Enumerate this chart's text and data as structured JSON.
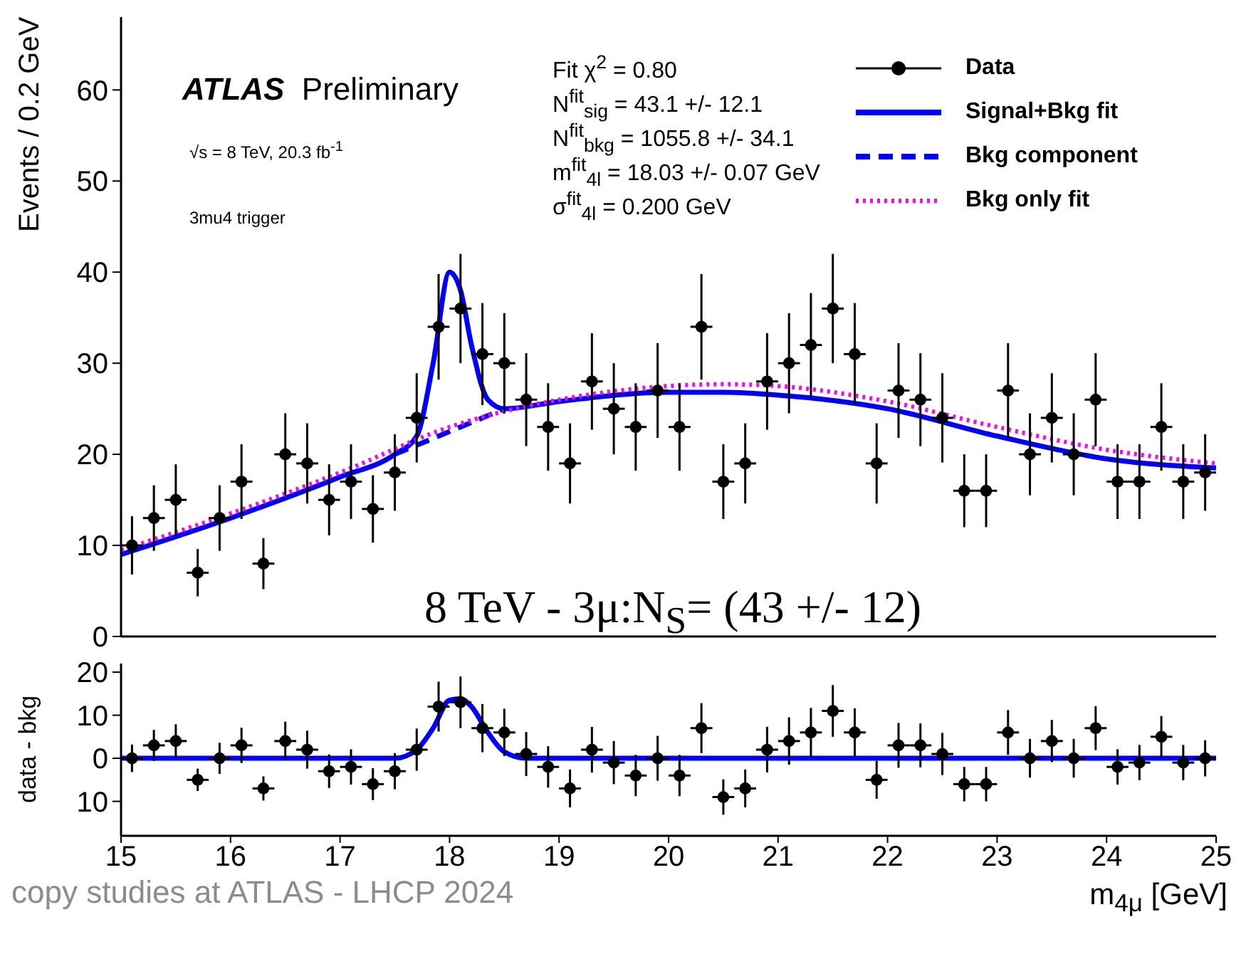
{
  "chart_data": [
    {
      "type": "scatter",
      "ylabel": "Events / 0.2 GeV",
      "xlim": [
        15,
        25
      ],
      "xticks": [
        15,
        16,
        17,
        18,
        19,
        20,
        21,
        22,
        23,
        24,
        25
      ],
      "ylim": [
        0,
        68
      ],
      "yticks": [
        0,
        10,
        20,
        30,
        40,
        50,
        60
      ],
      "tick_labels": "y",
      "legend": "top right",
      "annotations": [
        "ATLAS Preliminary",
        "√s = 8 TeV, 20.3 fb$^{-1}$",
        "3mu4 trigger",
        "Fit χ$^{2}$ = 0.80",
        "N$^{fit}$$_{sig}$ = 43.1 +/- 12.1",
        "N$^{fit}$$_{bkg}$ = 1055.8 +/- 34.1",
        "m$^{fit}$$_{4l}$ = 18.03 +/- 0.07 GeV",
        "σ$^{fit}$$_{4l}$ = 0.200 GeV",
        "8 TeV - 3μ:N$_{S}$= (43 +/- 12)"
      ],
      "series": [
        {
          "name": "Data",
          "marker": "circle",
          "color": "#000000",
          "x": [
            15.1,
            15.3,
            15.5,
            15.7,
            15.9,
            16.1,
            16.3,
            16.5,
            16.7,
            16.9,
            17.1,
            17.3,
            17.5,
            17.7,
            17.9,
            18.1,
            18.3,
            18.5,
            18.7,
            18.9,
            19.1,
            19.3,
            19.5,
            19.7,
            19.9,
            20.1,
            20.3,
            20.5,
            20.7,
            20.9,
            21.1,
            21.3,
            21.5,
            21.7,
            21.9,
            22.1,
            22.3,
            22.5,
            22.7,
            22.9,
            23.1,
            23.3,
            23.5,
            23.7,
            23.9,
            24.1,
            24.3,
            24.5,
            24.7,
            24.9
          ],
          "values": [
            10,
            13,
            15,
            7,
            13,
            17,
            8,
            20,
            19,
            15,
            17,
            14,
            18,
            24,
            34,
            36,
            31,
            30,
            26,
            23,
            19,
            28,
            25,
            23,
            27,
            23,
            34,
            17,
            19,
            28,
            30,
            32,
            36,
            31,
            19,
            27,
            26,
            24,
            16,
            16,
            27,
            20,
            24,
            20,
            26,
            17,
            17,
            23,
            17,
            18
          ],
          "errors": [
            3.2,
            3.6,
            3.9,
            2.6,
            3.6,
            4.1,
            2.8,
            4.5,
            4.4,
            3.9,
            4.1,
            3.7,
            4.2,
            4.9,
            5.8,
            6,
            5.6,
            5.5,
            5.1,
            4.8,
            4.4,
            5.3,
            5,
            4.8,
            5.2,
            4.8,
            5.8,
            4.1,
            4.4,
            5.3,
            5.5,
            5.7,
            6,
            5.6,
            4.4,
            5.2,
            5.1,
            4.9,
            4,
            4,
            5.2,
            4.5,
            4.9,
            4.5,
            5.1,
            4.1,
            4.1,
            4.8,
            4.1,
            4.2
          ],
          "xerrors": [
            0.1,
            0.1,
            0.1,
            0.1,
            0.1,
            0.1,
            0.1,
            0.1,
            0.1,
            0.1,
            0.1,
            0.1,
            0.1,
            0.1,
            0.1,
            0.1,
            0.1,
            0.1,
            0.1,
            0.1,
            0.1,
            0.1,
            0.1,
            0.1,
            0.1,
            0.1,
            0.1,
            0.1,
            0.1,
            0.1,
            0.1,
            0.1,
            0.1,
            0.1,
            0.1,
            0.1,
            0.1,
            0.1,
            0.1,
            0.1,
            0.1,
            0.1,
            0.1,
            0.1,
            0.1,
            0.1,
            0.1,
            0.1,
            0.1,
            0.1
          ]
        },
        {
          "name": "Signal+Bkg fit",
          "type": "line",
          "line_style": "solid",
          "color": "#0000ff",
          "x": [
            15,
            16,
            17,
            17.5,
            17.7,
            17.85,
            18,
            18.1,
            18.2,
            18.35,
            18.5,
            19,
            20,
            20.5,
            21,
            22,
            23,
            24,
            25
          ],
          "values": [
            9,
            13,
            17.5,
            20,
            22,
            30,
            40,
            38,
            32,
            26,
            25,
            25.8,
            26.8,
            26.8,
            26.5,
            25,
            22,
            19.5,
            18.5
          ]
        },
        {
          "name": "Bkg component",
          "type": "line",
          "line_style": "dashed",
          "color": "#0000ff",
          "x": [
            17.5,
            18,
            18.5
          ],
          "values": [
            20,
            22.5,
            25
          ]
        },
        {
          "name": "Bkg only fit",
          "type": "line",
          "line_style": "dotted",
          "color": "#ff00ff",
          "x": [
            15,
            16,
            17,
            18,
            19,
            20,
            20.5,
            21,
            22,
            23,
            24,
            25
          ],
          "values": [
            9.5,
            13.5,
            18,
            23,
            26,
            27.5,
            27.7,
            27.5,
            25.8,
            23,
            20.5,
            19
          ]
        }
      ]
    },
    {
      "type": "scatter",
      "ylabel": "data - bkg",
      "xlabel": "m$_{4μ}$ [GeV]",
      "xlim": [
        15,
        25
      ],
      "xticks": [
        15,
        16,
        17,
        18,
        19,
        20,
        21,
        22,
        23,
        24,
        25
      ],
      "ylim": [
        -18,
        22
      ],
      "yticks": [
        {
          "value": -10,
          "label": "10"
        },
        0,
        10,
        20
      ],
      "annotations": [
        "copy studies at ATLAS - LHCP 2024"
      ],
      "series": [
        {
          "marker": "circle",
          "color": "#000000",
          "x": [
            15.1,
            15.3,
            15.5,
            15.7,
            15.9,
            16.1,
            16.3,
            16.5,
            16.7,
            16.9,
            17.1,
            17.3,
            17.5,
            17.7,
            17.9,
            18.1,
            18.3,
            18.5,
            18.7,
            18.9,
            19.1,
            19.3,
            19.5,
            19.7,
            19.9,
            20.1,
            20.3,
            20.5,
            20.7,
            20.9,
            21.1,
            21.3,
            21.5,
            21.7,
            21.9,
            22.1,
            22.3,
            22.5,
            22.7,
            22.9,
            23.1,
            23.3,
            23.5,
            23.7,
            23.9,
            24.1,
            24.3,
            24.5,
            24.7,
            24.9
          ],
          "values": [
            0,
            3,
            4,
            -5,
            0,
            3,
            -7,
            4,
            2,
            -3,
            -2,
            -6,
            -3,
            2,
            12,
            13,
            7,
            6,
            1,
            -2,
            -7,
            2,
            -1,
            -4,
            0,
            -4,
            7,
            -9,
            -7,
            2,
            4,
            6,
            11,
            6,
            -5,
            3,
            3,
            1,
            -6,
            -6,
            6,
            0,
            4,
            0,
            7,
            -2,
            -1,
            5,
            -1,
            0
          ],
          "errors": [
            3.2,
            3.6,
            3.9,
            2.6,
            3.6,
            4.1,
            2.8,
            4.5,
            4.4,
            3.9,
            4.1,
            3.7,
            4.2,
            4.9,
            5.8,
            6,
            5.6,
            5.5,
            5.1,
            4.8,
            4.4,
            5.3,
            5,
            4.8,
            5.2,
            4.8,
            5.8,
            4.1,
            4.4,
            5.3,
            5.5,
            5.7,
            6,
            5.6,
            4.4,
            5.2,
            5.1,
            4.9,
            4,
            4,
            5.2,
            4.5,
            4.9,
            4.5,
            5.1,
            4.1,
            4.1,
            4.8,
            4.1,
            4.2
          ],
          "xerrors": [
            0.1,
            0.1,
            0.1,
            0.1,
            0.1,
            0.1,
            0.1,
            0.1,
            0.1,
            0.1,
            0.1,
            0.1,
            0.1,
            0.1,
            0.1,
            0.1,
            0.1,
            0.1,
            0.1,
            0.1,
            0.1,
            0.1,
            0.1,
            0.1,
            0.1,
            0.1,
            0.1,
            0.1,
            0.1,
            0.1,
            0.1,
            0.1,
            0.1,
            0.1,
            0.1,
            0.1,
            0.1,
            0.1,
            0.1,
            0.1,
            0.1,
            0.1,
            0.1,
            0.1,
            0.1,
            0.1,
            0.1,
            0.1,
            0.1,
            0.1
          ]
        },
        {
          "type": "line",
          "line_style": "solid",
          "color": "#0000ff",
          "x": [
            15,
            17.5,
            17.7,
            17.85,
            18,
            18.1,
            18.2,
            18.35,
            18.5,
            18.7,
            25
          ],
          "values": [
            0,
            0,
            2,
            7,
            13.5,
            13.8,
            12,
            6,
            1.5,
            0,
            0
          ]
        }
      ]
    }
  ]
}
